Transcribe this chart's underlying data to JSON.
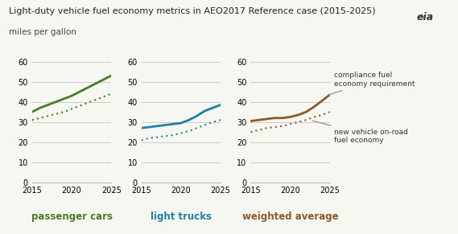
{
  "title": "Light-duty vehicle fuel economy metrics in AEO2017 Reference case (2015-2025)",
  "subtitle": "miles per gallon",
  "years": [
    2015,
    2016,
    2017,
    2018,
    2019,
    2020,
    2021,
    2022,
    2023,
    2024,
    2025
  ],
  "passenger_cars_solid": [
    35,
    37,
    38.5,
    40,
    41.5,
    43,
    45,
    47,
    49,
    51,
    53
  ],
  "passenger_cars_dotted": [
    31,
    32,
    33,
    34,
    35,
    36.5,
    38,
    39.5,
    41,
    42.5,
    44
  ],
  "light_trucks_solid": [
    27,
    27.5,
    28,
    28.5,
    29,
    29.5,
    31,
    33,
    35.5,
    37,
    38.5
  ],
  "light_trucks_dotted": [
    21,
    22,
    22.5,
    23,
    23.5,
    24.5,
    25.5,
    27,
    28.5,
    30,
    31
  ],
  "weighted_avg_solid": [
    30.5,
    31,
    31.5,
    32,
    32,
    32.5,
    33.5,
    35,
    37.5,
    40.5,
    43.5
  ],
  "weighted_avg_dotted": [
    25,
    26,
    27,
    27.5,
    28,
    29,
    30,
    31,
    32.5,
    33.5,
    35
  ],
  "color_green": "#4a7a2a",
  "color_blue": "#2080a0",
  "color_brown": "#8B5A2B",
  "label_passenger": "passenger cars",
  "label_trucks": "light trucks",
  "label_weighted": "weighted average",
  "annotation1_line1": "compliance fuel",
  "annotation1_line2": "economy requirement",
  "annotation2_line1": "new vehicle on-road",
  "annotation2_line2": "fuel economy",
  "ylim": [
    0,
    65
  ],
  "yticks": [
    0,
    10,
    20,
    30,
    40,
    50,
    60
  ],
  "xlim": [
    2015,
    2025
  ],
  "xticks": [
    2015,
    2020,
    2025
  ],
  "bg_color": "#f7f7f2"
}
